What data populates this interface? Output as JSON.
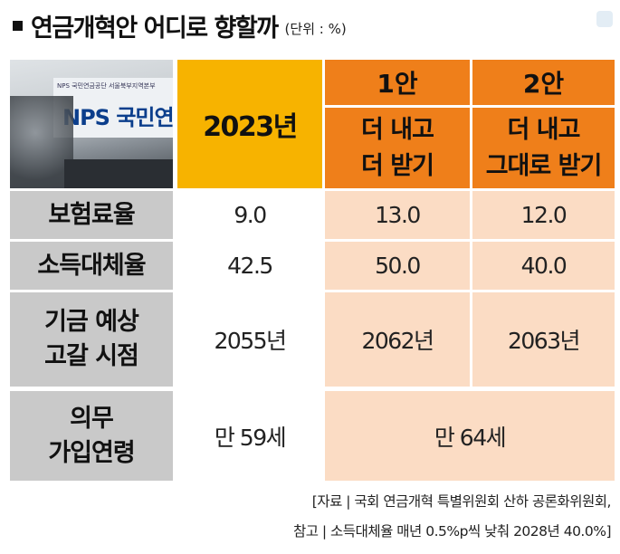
{
  "title": {
    "text": "연금개혁안 어디로 향할까",
    "unit": "(단위 : %)"
  },
  "photo": {
    "small_text": "NPS 국민연금공단 서울북부지역본부",
    "logo_text": "NPS 국민연"
  },
  "header": {
    "year": "2023년",
    "plan1": {
      "name": "1안",
      "desc_line1": "더 내고",
      "desc_line2": "더 받기"
    },
    "plan2": {
      "name": "2안",
      "desc_line1": "더 내고",
      "desc_line2": "그대로 받기"
    }
  },
  "rows": [
    {
      "label": "보험료율",
      "values": [
        "9.0",
        "13.0",
        "12.0"
      ]
    },
    {
      "label": "소득대체율",
      "values": [
        "42.5",
        "50.0",
        "40.0"
      ]
    },
    {
      "label_line1": "기금 예상",
      "label_line2": "고갈 시점",
      "values": [
        "2055년",
        "2062년",
        "2063년"
      ]
    },
    {
      "label_line1": "의무",
      "label_line2": "가입연령",
      "values": [
        "만 59세",
        "만 64세"
      ]
    }
  ],
  "source": {
    "line1": "[자료 | 국회 연금개혁 특별위원회 산하 공론화위원회,",
    "line2": "참고 | 소득대체율 매년 0.5%p씩 낮춰 2028년 40.0%]"
  },
  "colors": {
    "year_col": "#f7b300",
    "plan_header": "#ef7f1a",
    "plan_cell": "#fbdcc4",
    "label_cell": "#c9c9c9"
  }
}
